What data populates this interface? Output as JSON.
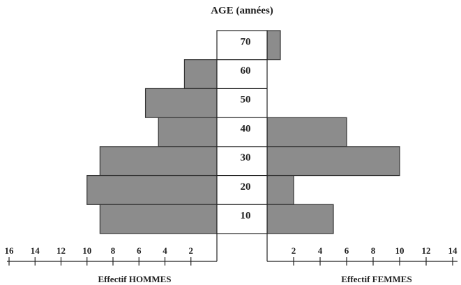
{
  "chart_data": {
    "type": "population_pyramid",
    "title": "AGE (années)",
    "categories": [
      "70",
      "60",
      "50",
      "40",
      "30",
      "20",
      "10"
    ],
    "series": [
      {
        "side": "left",
        "color": "#8c8c8c",
        "values": [
          0,
          2.5,
          5.5,
          4.5,
          9,
          10,
          9
        ]
      },
      {
        "side": "right",
        "color": "#8c8c8c",
        "values": [
          1,
          0,
          0,
          6,
          10,
          2,
          5
        ]
      }
    ],
    "xlabel_left": "Effectif HOMMES",
    "xlabel_right": "Effectif FEMMES",
    "xlim_left": [
      0,
      16
    ],
    "xticks_left": [
      2,
      4,
      6,
      8,
      10,
      12,
      14,
      16
    ],
    "xlim_right": [
      0,
      14
    ],
    "xticks_right": [
      2,
      4,
      6,
      8,
      10,
      12,
      14
    ]
  }
}
